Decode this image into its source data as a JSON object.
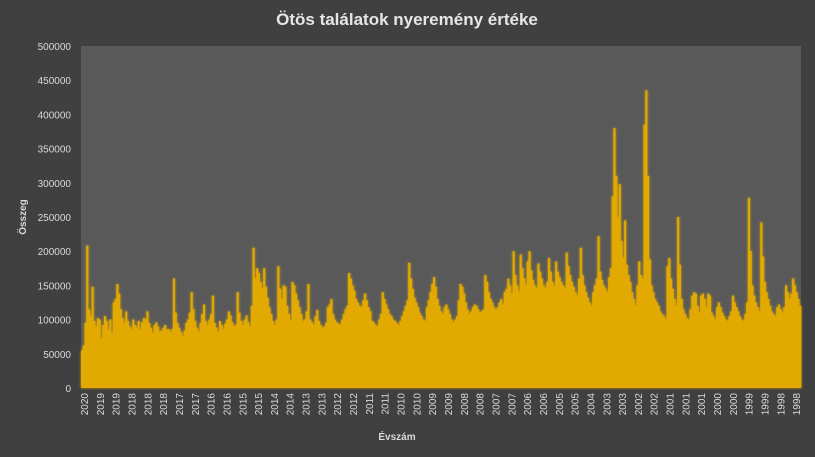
{
  "chart_data": {
    "type": "bar",
    "title": "Ötös találatok nyeremény értéke",
    "xlabel": "Évszám",
    "ylabel": "Összeg",
    "ylim": [
      0,
      500000
    ],
    "yticks": [
      0,
      50000,
      100000,
      150000,
      200000,
      250000,
      300000,
      350000,
      400000,
      450000,
      500000
    ],
    "xticks": [
      "2020",
      "2019",
      "2019",
      "2018",
      "2018",
      "2018",
      "2017",
      "2017",
      "2016",
      "2016",
      "2015",
      "2015",
      "2014",
      "2014",
      "2013",
      "2013",
      "2012",
      "2012",
      "2011",
      "2011",
      "2010",
      "2010",
      "2009",
      "2009",
      "2008",
      "2008",
      "2007",
      "2007",
      "2006",
      "2006",
      "2005",
      "2005",
      "2004",
      "2003",
      "2003",
      "2002",
      "2002",
      "2001",
      "2001",
      "2001",
      "2000",
      "2000",
      "1999",
      "1999",
      "1998",
      "1998"
    ],
    "grid": false,
    "legend": "none",
    "colors": {
      "background": "#404040",
      "plot_background": "#595959",
      "bar": "#e2aa00",
      "bar_glow": "#ffcc33",
      "text": "#d9d9d9",
      "title": "#e6e6e6"
    },
    "series": [
      {
        "values": [
          55000,
          62000,
          95000,
          208000,
          115000,
          105000,
          148000,
          98000,
          90000,
          102000,
          100000,
          72000,
          92000,
          105000,
          98000,
          85000,
          100000,
          80000,
          125000,
          130000,
          152000,
          138000,
          115000,
          102000,
          95000,
          112000,
          98000,
          90000,
          86000,
          100000,
          92000,
          88000,
          98000,
          85000,
          96000,
          102000,
          100000,
          112000,
          95000,
          88000,
          80000,
          92000,
          96000,
          90000,
          82000,
          84000,
          88000,
          92000,
          85000,
          86000,
          82000,
          86000,
          160000,
          110000,
          95000,
          88000,
          82000,
          76000,
          84000,
          95000,
          100000,
          110000,
          140000,
          115000,
          98000,
          88000,
          82000,
          95000,
          108000,
          122000,
          98000,
          92000,
          100000,
          108000,
          135000,
          95000,
          88000,
          82000,
          98000,
          92000,
          86000,
          94000,
          100000,
          112000,
          106000,
          96000,
          90000,
          92000,
          140000,
          110000,
          98000,
          92000,
          100000,
          106000,
          96000,
          90000,
          120000,
          205000,
          160000,
          175000,
          168000,
          155000,
          145000,
          175000,
          148000,
          132000,
          118000,
          108000,
          98000,
          92000,
          100000,
          178000,
          145000,
          130000,
          150000,
          148000,
          120000,
          108000,
          98000,
          155000,
          150000,
          138000,
          128000,
          118000,
          108000,
          98000,
          100000,
          112000,
          152000,
          100000,
          96000,
          92000,
          105000,
          114000,
          98000,
          92000,
          88000,
          90000,
          95000,
          118000,
          122000,
          130000,
          108000,
          100000,
          96000,
          94000,
          92000,
          100000,
          108000,
          115000,
          120000,
          168000,
          160000,
          150000,
          142000,
          130000,
          125000,
          120000,
          118000,
          128000,
          138000,
          128000,
          118000,
          112000,
          98000,
          96000,
          92000,
          90000,
          100000,
          108000,
          140000,
          130000,
          122000,
          115000,
          108000,
          105000,
          100000,
          98000,
          95000,
          92000,
          98000,
          105000,
          112000,
          120000,
          128000,
          183000,
          160000,
          145000,
          132000,
          125000,
          118000,
          110000,
          105000,
          100000,
          98000,
          118000,
          128000,
          140000,
          152000,
          162000,
          148000,
          130000,
          120000,
          112000,
          108000,
          118000,
          122000,
          115000,
          108000,
          100000,
          96000,
          100000,
          105000,
          128000,
          152000,
          148000,
          138000,
          125000,
          115000,
          108000,
          112000,
          118000,
          122000,
          120000,
          115000,
          110000,
          112000,
          115000,
          165000,
          155000,
          140000,
          130000,
          125000,
          118000,
          114000,
          118000,
          125000,
          130000,
          122000,
          140000,
          145000,
          160000,
          150000,
          138000,
          200000,
          165000,
          150000,
          140000,
          195000,
          175000,
          160000,
          150000,
          185000,
          200000,
          172000,
          158000,
          150000,
          145000,
          182000,
          170000,
          160000,
          150000,
          145000,
          155000,
          190000,
          170000,
          155000,
          148000,
          185000,
          170000,
          162000,
          155000,
          150000,
          145000,
          198000,
          178000,
          165000,
          155000,
          148000,
          140000,
          135000,
          160000,
          205000,
          165000,
          150000,
          140000,
          132000,
          125000,
          120000,
          140000,
          150000,
          160000,
          222000,
          170000,
          158000,
          150000,
          145000,
          140000,
          162000,
          175000,
          280000,
          380000,
          310000,
          250000,
          298000,
          215000,
          190000,
          245000,
          180000,
          165000,
          155000,
          140000,
          130000,
          120000,
          150000,
          185000,
          165000,
          160000,
          385000,
          435000,
          310000,
          188000,
          150000,
          140000,
          130000,
          125000,
          120000,
          112000,
          108000,
          105000,
          100000,
          178000,
          190000,
          160000,
          145000,
          130000,
          120000,
          250000,
          180000,
          130000,
          115000,
          108000,
          102000,
          100000,
          115000,
          135000,
          140000,
          138000,
          120000,
          110000,
          135000,
          138000,
          130000,
          118000,
          138000,
          135000,
          110000,
          105000,
          100000,
          118000,
          125000,
          118000,
          110000,
          105000,
          100000,
          98000,
          105000,
          112000,
          135000,
          125000,
          118000,
          112000,
          105000,
          100000,
          98000,
          108000,
          125000,
          278000,
          200000,
          150000,
          135000,
          125000,
          118000,
          112000,
          242000,
          192000,
          155000,
          140000,
          130000,
          120000,
          112000,
          108000,
          105000,
          118000,
          122000,
          115000,
          110000,
          118000,
          150000,
          140000,
          130000,
          138000,
          160000,
          150000,
          140000,
          130000,
          120000
        ]
      }
    ]
  }
}
